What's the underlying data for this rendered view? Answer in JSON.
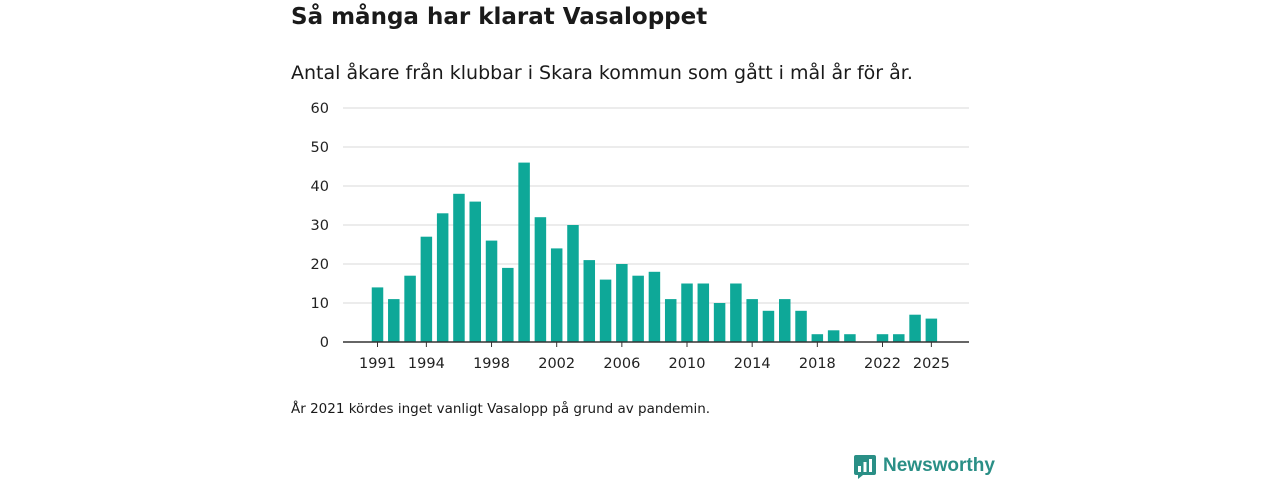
{
  "header": {
    "title": "Så många har klarat Vasaloppet",
    "subtitle": "Antal åkare från klubbar i Skara kommun som gått i mål år för år."
  },
  "footnote": "År 2021 kördes inget vanligt Vasalopp på grund av pandemin.",
  "brand": {
    "name": "Newsworthy",
    "icon": "newsworthy-logo-icon"
  },
  "colors": {
    "bar": "#0ea898",
    "grid": "#d9d9d9",
    "axis": "#333333",
    "brand": "#2a8f86"
  },
  "chart_data": {
    "type": "bar",
    "title": "Så många har klarat Vasaloppet",
    "xlabel": "",
    "ylabel": "",
    "ylim": [
      0,
      60
    ],
    "yticks": [
      0,
      10,
      20,
      30,
      40,
      50,
      60
    ],
    "xtick_labels": [
      "1991",
      "1994",
      "1998",
      "2002",
      "2006",
      "2010",
      "2014",
      "2018",
      "2022",
      "2025"
    ],
    "categories": [
      "1991",
      "1992",
      "1993",
      "1994",
      "1995",
      "1996",
      "1997",
      "1998",
      "1999",
      "2000",
      "2001",
      "2002",
      "2003",
      "2004",
      "2005",
      "2006",
      "2007",
      "2008",
      "2009",
      "2010",
      "2011",
      "2012",
      "2013",
      "2014",
      "2015",
      "2016",
      "2017",
      "2018",
      "2019",
      "2020",
      "2021",
      "2022",
      "2023",
      "2024",
      "2025"
    ],
    "values": [
      14,
      11,
      17,
      27,
      33,
      38,
      36,
      26,
      19,
      46,
      32,
      24,
      30,
      21,
      16,
      20,
      17,
      18,
      11,
      15,
      15,
      10,
      15,
      11,
      8,
      11,
      8,
      2,
      3,
      2,
      null,
      2,
      2,
      7,
      6
    ],
    "grid": true
  }
}
